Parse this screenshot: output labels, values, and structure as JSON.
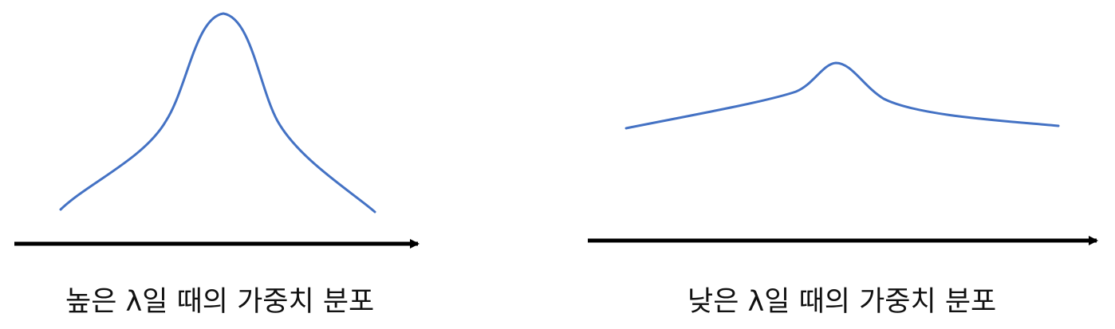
{
  "panels": [
    {
      "id": "high-lambda",
      "caption": "높은 λ일 때의 가중치 분포",
      "curve_color": "#4472C4",
      "axis_color": "#000000"
    },
    {
      "id": "low-lambda",
      "caption": "낮은 λ일 때의 가중치 분포",
      "curve_color": "#4472C4",
      "axis_color": "#000000"
    }
  ]
}
